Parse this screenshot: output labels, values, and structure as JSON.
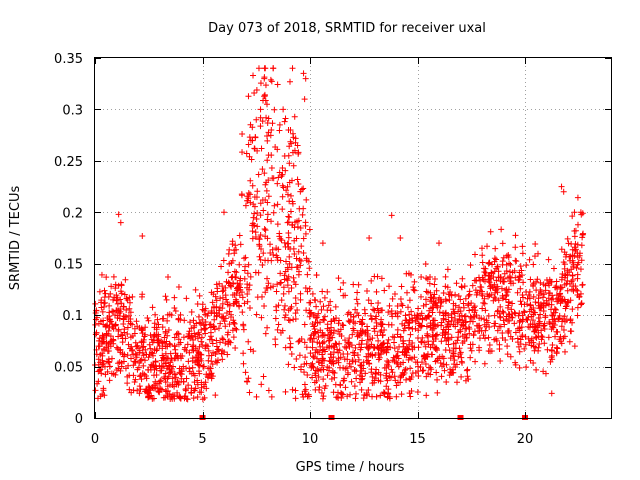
{
  "chart_data": {
    "type": "scatter",
    "title": "Day 073 of 2018, SRMTID for receiver uxal",
    "xlabel": "GPS time / hours",
    "ylabel": "SRMTID / TECUs",
    "xlim": [
      0,
      24
    ],
    "ylim": [
      0,
      0.35
    ],
    "xticks": [
      0,
      5,
      10,
      15,
      20
    ],
    "xtick_labels": [
      "0",
      "5",
      "10",
      "15",
      "20"
    ],
    "yticks": [
      0,
      0.05,
      0.1,
      0.15,
      0.2,
      0.25,
      0.3,
      0.35
    ],
    "ytick_labels": [
      "0",
      "0.05",
      "0.1",
      "0.15",
      "0.2",
      "0.25",
      "0.3",
      "0.35"
    ],
    "grid": true,
    "marker": "+",
    "color": "#ff0000",
    "data_gaps_x": [
      5.0,
      11.0,
      17.0,
      20.0
    ],
    "trend_profile": [
      [
        0.0,
        0.07
      ],
      [
        0.5,
        0.08
      ],
      [
        1.0,
        0.09
      ],
      [
        1.5,
        0.08
      ],
      [
        2.0,
        0.06
      ],
      [
        2.5,
        0.05
      ],
      [
        3.0,
        0.06
      ],
      [
        3.5,
        0.055
      ],
      [
        4.0,
        0.055
      ],
      [
        4.5,
        0.06
      ],
      [
        5.0,
        0.065
      ],
      [
        5.5,
        0.08
      ],
      [
        6.0,
        0.1
      ],
      [
        6.5,
        0.12
      ],
      [
        7.0,
        0.17
      ],
      [
        7.5,
        0.2
      ],
      [
        8.0,
        0.21
      ],
      [
        8.5,
        0.19
      ],
      [
        9.0,
        0.17
      ],
      [
        9.5,
        0.16
      ],
      [
        10.0,
        0.09
      ],
      [
        10.5,
        0.07
      ],
      [
        11.0,
        0.065
      ],
      [
        11.5,
        0.065
      ],
      [
        12.0,
        0.07
      ],
      [
        12.5,
        0.07
      ],
      [
        13.0,
        0.07
      ],
      [
        13.5,
        0.065
      ],
      [
        14.0,
        0.07
      ],
      [
        14.5,
        0.075
      ],
      [
        15.0,
        0.085
      ],
      [
        15.5,
        0.09
      ],
      [
        16.0,
        0.09
      ],
      [
        16.5,
        0.085
      ],
      [
        17.0,
        0.08
      ],
      [
        17.5,
        0.1
      ],
      [
        18.0,
        0.11
      ],
      [
        18.5,
        0.12
      ],
      [
        19.0,
        0.115
      ],
      [
        19.5,
        0.11
      ],
      [
        20.0,
        0.105
      ],
      [
        20.5,
        0.1
      ],
      [
        21.0,
        0.095
      ],
      [
        21.5,
        0.1
      ],
      [
        22.0,
        0.13
      ],
      [
        22.5,
        0.15
      ],
      [
        22.7,
        0.15
      ]
    ],
    "peak_points": [
      [
        7.35,
        0.333
      ],
      [
        7.4,
        0.316
      ],
      [
        7.5,
        0.29
      ],
      [
        7.7,
        0.3
      ],
      [
        7.9,
        0.313
      ],
      [
        8.0,
        0.305
      ],
      [
        8.2,
        0.28
      ],
      [
        8.6,
        0.285
      ],
      [
        8.75,
        0.3
      ],
      [
        9.0,
        0.28
      ],
      [
        9.3,
        0.26
      ],
      [
        9.7,
        0.335
      ],
      [
        9.8,
        0.33
      ],
      [
        9.75,
        0.31
      ],
      [
        6.0,
        0.2
      ],
      [
        1.1,
        0.198
      ],
      [
        1.2,
        0.19
      ],
      [
        2.2,
        0.177
      ],
      [
        13.8,
        0.197
      ],
      [
        21.7,
        0.225
      ],
      [
        21.8,
        0.22
      ],
      [
        22.3,
        0.2
      ],
      [
        22.6,
        0.2
      ],
      [
        12.75,
        0.175
      ],
      [
        18.0,
        0.165
      ],
      [
        19.9,
        0.16
      ],
      [
        10.6,
        0.17
      ],
      [
        14.2,
        0.175
      ],
      [
        16.0,
        0.17
      ]
    ]
  }
}
